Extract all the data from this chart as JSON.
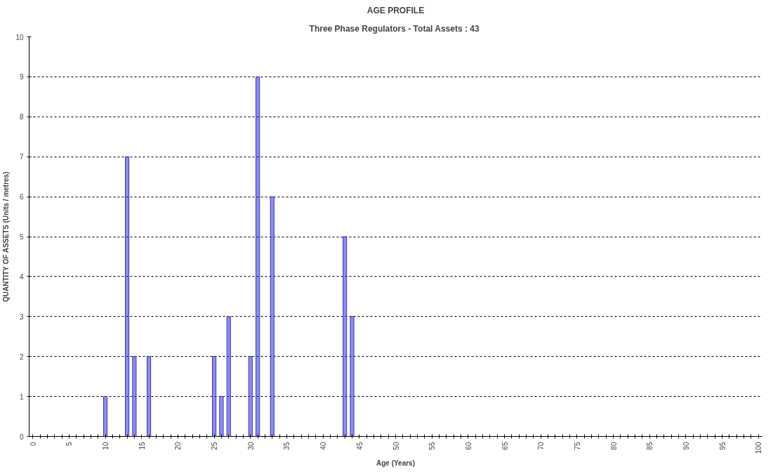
{
  "chart_data": {
    "type": "bar",
    "title": "AGE PROFILE",
    "subtitle": "Three Phase Regulators - Total Assets :  43",
    "xlabel": "Age (Years)",
    "ylabel": "QUANTITY OF ASSETS (Units / metres)",
    "x": [
      10,
      13,
      14,
      16,
      25,
      26,
      27,
      30,
      31,
      33,
      43,
      44
    ],
    "values": [
      1,
      7,
      2,
      2,
      2,
      1,
      3,
      2,
      9,
      6,
      5,
      3
    ],
    "color": "#3333cc",
    "xlim": [
      -0.5,
      100.5
    ],
    "xticks": [
      0,
      {
        "value": 1,
        "label": null
      },
      {
        "value": 2,
        "label": null
      },
      {
        "value": 3,
        "label": null
      },
      {
        "value": 4,
        "label": null
      },
      5,
      {
        "value": 6,
        "label": null
      },
      {
        "value": 7,
        "label": null
      },
      {
        "value": 8,
        "label": null
      },
      {
        "value": 9,
        "label": null
      },
      10,
      {
        "value": 11,
        "label": null
      },
      {
        "value": 12,
        "label": null
      },
      {
        "value": 13,
        "label": null
      },
      {
        "value": 14,
        "label": null
      },
      15,
      {
        "value": 16,
        "label": null
      },
      {
        "value": 17,
        "label": null
      },
      {
        "value": 18,
        "label": null
      },
      {
        "value": 19,
        "label": null
      },
      20,
      {
        "value": 21,
        "label": null
      },
      {
        "value": 22,
        "label": null
      },
      {
        "value": 23,
        "label": null
      },
      {
        "value": 24,
        "label": null
      },
      25,
      {
        "value": 26,
        "label": null
      },
      {
        "value": 27,
        "label": null
      },
      {
        "value": 28,
        "label": null
      },
      {
        "value": 29,
        "label": null
      },
      30,
      {
        "value": 31,
        "label": null
      },
      {
        "value": 32,
        "label": null
      },
      {
        "value": 33,
        "label": null
      },
      {
        "value": 34,
        "label": null
      },
      35,
      {
        "value": 36,
        "label": null
      },
      {
        "value": 37,
        "label": null
      },
      {
        "value": 38,
        "label": null
      },
      {
        "value": 39,
        "label": null
      },
      40,
      {
        "value": 41,
        "label": null
      },
      {
        "value": 42,
        "label": null
      },
      {
        "value": 43,
        "label": null
      },
      {
        "value": 44,
        "label": null
      },
      45,
      {
        "value": 46,
        "label": null
      },
      {
        "value": 47,
        "label": null
      },
      {
        "value": 48,
        "label": null
      },
      {
        "value": 49,
        "label": null
      },
      50,
      {
        "value": 51,
        "label": null
      },
      {
        "value": 52,
        "label": null
      },
      {
        "value": 53,
        "label": null
      },
      {
        "value": 54,
        "label": null
      },
      55,
      {
        "value": 56,
        "label": null
      },
      {
        "value": 57,
        "label": null
      },
      {
        "value": 58,
        "label": null
      },
      {
        "value": 59,
        "label": null
      },
      60,
      {
        "value": 61,
        "label": null
      },
      {
        "value": 62,
        "label": null
      },
      {
        "value": 63,
        "label": null
      },
      {
        "value": 64,
        "label": null
      },
      65,
      {
        "value": 66,
        "label": null
      },
      {
        "value": 67,
        "label": null
      },
      {
        "value": 68,
        "label": null
      },
      {
        "value": 69,
        "label": null
      },
      70,
      {
        "value": 71,
        "label": null
      },
      {
        "value": 72,
        "label": null
      },
      {
        "value": 73,
        "label": null
      },
      {
        "value": 74,
        "label": null
      },
      75,
      {
        "value": 76,
        "label": null
      },
      {
        "value": 77,
        "label": null
      },
      {
        "value": 78,
        "label": null
      },
      {
        "value": 79,
        "label": null
      },
      80,
      {
        "value": 81,
        "label": null
      },
      {
        "value": 82,
        "label": null
      },
      {
        "value": 83,
        "label": null
      },
      {
        "value": 84,
        "label": null
      },
      85,
      {
        "value": 86,
        "label": null
      },
      {
        "value": 87,
        "label": null
      },
      {
        "value": 88,
        "label": null
      },
      {
        "value": 89,
        "label": null
      },
      90,
      {
        "value": 91,
        "label": null
      },
      {
        "value": 92,
        "label": null
      },
      {
        "value": 93,
        "label": null
      },
      {
        "value": 94,
        "label": null
      },
      95,
      {
        "value": 96,
        "label": null
      },
      {
        "value": 97,
        "label": null
      },
      {
        "value": 98,
        "label": null
      },
      {
        "value": 99,
        "label": null
      },
      100
    ],
    "ylim": [
      0,
      10
    ],
    "yticks": [
      0,
      1,
      2,
      3,
      4,
      5,
      6,
      7,
      8,
      9,
      10
    ],
    "grid": "y"
  }
}
